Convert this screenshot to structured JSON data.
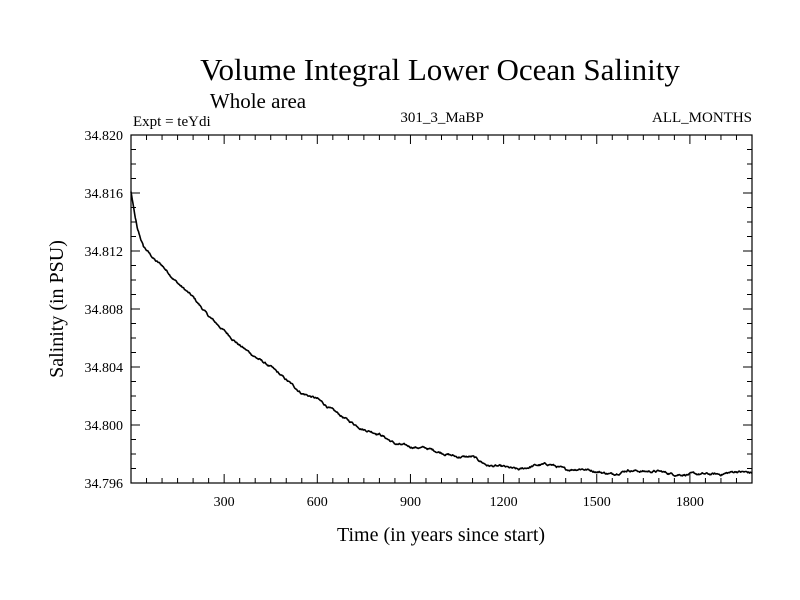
{
  "chart_data": {
    "type": "line",
    "title": "Volume Integral Lower Ocean Salinity",
    "subtitle": "Whole area",
    "header_left": "Expt = teYdi",
    "header_center": "301_3_MaBP",
    "header_right": "ALL_MONTHS",
    "xlabel": "Time (in years since start)",
    "ylabel": "Salinity (in PSU)",
    "xlim": [
      0,
      2000
    ],
    "ylim": [
      34.796,
      34.82
    ],
    "xticks": [
      300,
      600,
      900,
      1200,
      1500,
      1800
    ],
    "xtick_labels": [
      "300",
      "600",
      "900",
      "1200",
      "1500",
      "1800"
    ],
    "yticks": [
      34.796,
      34.8,
      34.804,
      34.808,
      34.812,
      34.816,
      34.82
    ],
    "ytick_labels": [
      "34.796",
      "34.800",
      "34.804",
      "34.808",
      "34.812",
      "34.816",
      "34.820"
    ],
    "grid": false,
    "series": [
      {
        "name": "Salinity",
        "x": [
          0,
          20,
          40,
          60,
          80,
          100,
          150,
          200,
          250,
          300,
          350,
          400,
          450,
          500,
          550,
          600,
          650,
          700,
          750,
          800,
          850,
          900,
          950,
          1000,
          1050,
          1100,
          1150,
          1200,
          1250,
          1300,
          1350,
          1400,
          1450,
          1500,
          1550,
          1600,
          1650,
          1700,
          1750,
          1800,
          1850,
          1900,
          1950,
          2000
        ],
        "values": [
          34.8161,
          34.8135,
          34.8123,
          34.8118,
          34.8113,
          34.811,
          34.8098,
          34.8088,
          34.8075,
          34.8065,
          34.8055,
          34.8047,
          34.804,
          34.8031,
          34.8022,
          34.8018,
          34.801,
          34.8003,
          34.7997,
          34.7994,
          34.7987,
          34.7985,
          34.7984,
          34.7981,
          34.7978,
          34.7978,
          34.7972,
          34.7971,
          34.7969,
          34.7972,
          34.7973,
          34.7969,
          34.797,
          34.7968,
          34.7966,
          34.7969,
          34.7968,
          34.7968,
          34.7966,
          34.7966,
          34.7966,
          34.7966,
          34.7968,
          34.7967
        ]
      }
    ]
  }
}
